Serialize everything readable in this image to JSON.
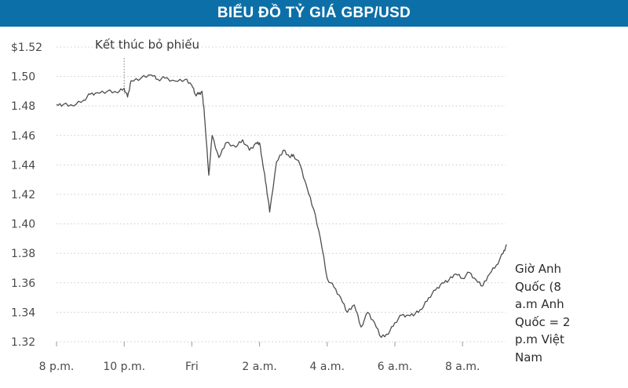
{
  "chart_data": {
    "type": "line",
    "title": "BIỂU ĐỒ TỶ GIÁ GBP/USD",
    "xlabel": "",
    "ylabel": "",
    "x_ticks": [
      "8 p.m.",
      "10 p.m.",
      "Fri",
      "2 a.m.",
      "4 a.m.",
      "6 a.m.",
      "8 a.m."
    ],
    "y_ticks": [
      "$1.52",
      "1.50",
      "1.48",
      "1.46",
      "1.44",
      "1.42",
      "1.40",
      "1.38",
      "1.36",
      "1.34",
      "1.32"
    ],
    "ylim": [
      1.32,
      1.52
    ],
    "xlim": [
      0,
      13.3
    ],
    "grid": "horizontal",
    "annotation": {
      "text": "Kết thúc bỏ phiếu",
      "x": 2.0
    },
    "side_note": "Giờ Anh\nQuốc (8\na.m Anh\nQuốc = 2\np.m Việt\nNam",
    "series": [
      {
        "x": [
          0,
          0.2,
          0.5,
          0.8,
          1.0,
          1.2,
          1.5,
          1.8,
          2.0,
          2.1,
          2.2,
          2.5,
          2.8,
          3.0,
          3.2,
          3.5,
          3.8,
          4.0,
          4.1,
          4.2,
          4.3,
          4.35,
          4.4,
          4.5,
          4.6,
          4.8,
          5.0,
          5.3,
          5.5,
          5.7,
          5.9,
          6.0,
          6.1,
          6.2,
          6.3,
          6.5,
          6.7,
          6.9,
          7.0,
          7.2,
          7.4,
          7.6,
          7.8,
          8.0,
          8.2,
          8.4,
          8.6,
          8.8,
          9.0,
          9.2,
          9.4,
          9.6,
          9.8,
          10.0,
          10.2,
          10.4,
          10.6,
          10.8,
          11.0,
          11.2,
          11.4,
          11.6,
          11.8,
          12.0,
          12.2,
          12.4,
          12.6,
          12.8,
          13.0,
          13.2,
          13.3
        ],
        "y": [
          1.481,
          1.481,
          1.48,
          1.484,
          1.488,
          1.489,
          1.49,
          1.489,
          1.492,
          1.486,
          1.497,
          1.499,
          1.501,
          1.498,
          1.499,
          1.497,
          1.498,
          1.494,
          1.488,
          1.488,
          1.49,
          1.48,
          1.465,
          1.433,
          1.46,
          1.445,
          1.455,
          1.452,
          1.457,
          1.45,
          1.455,
          1.455,
          1.44,
          1.426,
          1.408,
          1.442,
          1.45,
          1.445,
          1.447,
          1.44,
          1.425,
          1.41,
          1.39,
          1.363,
          1.357,
          1.35,
          1.34,
          1.345,
          1.33,
          1.34,
          1.333,
          1.323,
          1.325,
          1.333,
          1.338,
          1.338,
          1.339,
          1.342,
          1.35,
          1.355,
          1.36,
          1.362,
          1.366,
          1.363,
          1.367,
          1.362,
          1.358,
          1.366,
          1.372,
          1.38,
          1.386
        ]
      }
    ]
  }
}
